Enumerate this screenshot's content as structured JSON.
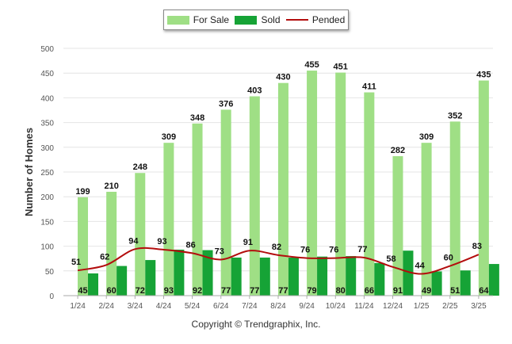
{
  "copyright": "Copyright © Trendgraphix, Inc.",
  "colors": {
    "for_sale": "#9fdf85",
    "sold": "#16a336",
    "pended": "#b30d0d"
  },
  "chart_data": {
    "type": "bar",
    "ylabel": "Number of Homes",
    "ylim": [
      0,
      500
    ],
    "yticks": [
      0,
      50,
      100,
      150,
      200,
      250,
      300,
      350,
      400,
      450,
      500
    ],
    "grid": true,
    "legend": "top-center",
    "categories": [
      "1/24",
      "2/24",
      "3/24",
      "4/24",
      "5/24",
      "6/24",
      "7/24",
      "8/24",
      "9/24",
      "10/24",
      "11/24",
      "12/24",
      "1/25",
      "2/25",
      "3/25"
    ],
    "series": [
      {
        "name": "For Sale",
        "type": "bar",
        "values": [
          199,
          210,
          248,
          309,
          348,
          376,
          403,
          430,
          455,
          451,
          411,
          282,
          309,
          352,
          435
        ]
      },
      {
        "name": "Sold",
        "type": "bar",
        "values": [
          45,
          60,
          72,
          93,
          92,
          77,
          77,
          77,
          79,
          80,
          66,
          91,
          49,
          51,
          64
        ]
      },
      {
        "name": "Pended",
        "type": "line",
        "values": [
          51,
          62,
          94,
          93,
          86,
          73,
          91,
          82,
          76,
          76,
          77,
          58,
          44,
          60,
          83
        ]
      }
    ]
  }
}
